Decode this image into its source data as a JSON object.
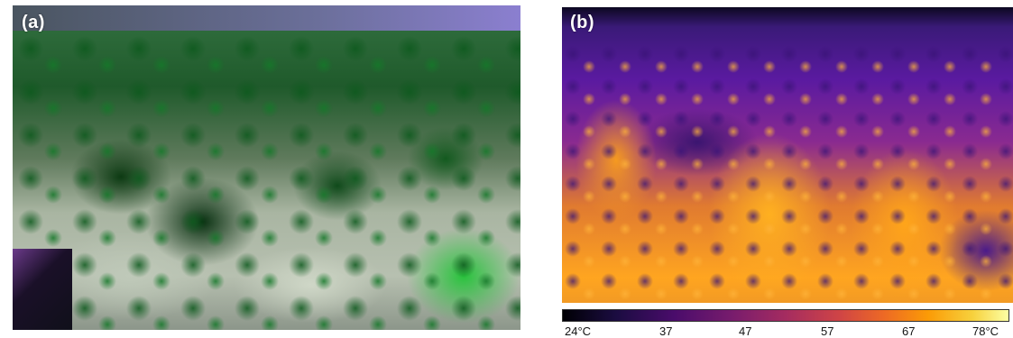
{
  "panels": {
    "a": {
      "label": "(a)"
    },
    "b": {
      "label": "(b)"
    }
  },
  "colorbar": {
    "ticks": [
      "24°C",
      "37",
      "47",
      "57",
      "67",
      "78°C"
    ],
    "colors": [
      "#000004",
      "#4a0c6b",
      "#a52c60",
      "#ed6925",
      "#fb9b06",
      "#fcffa4"
    ]
  }
}
